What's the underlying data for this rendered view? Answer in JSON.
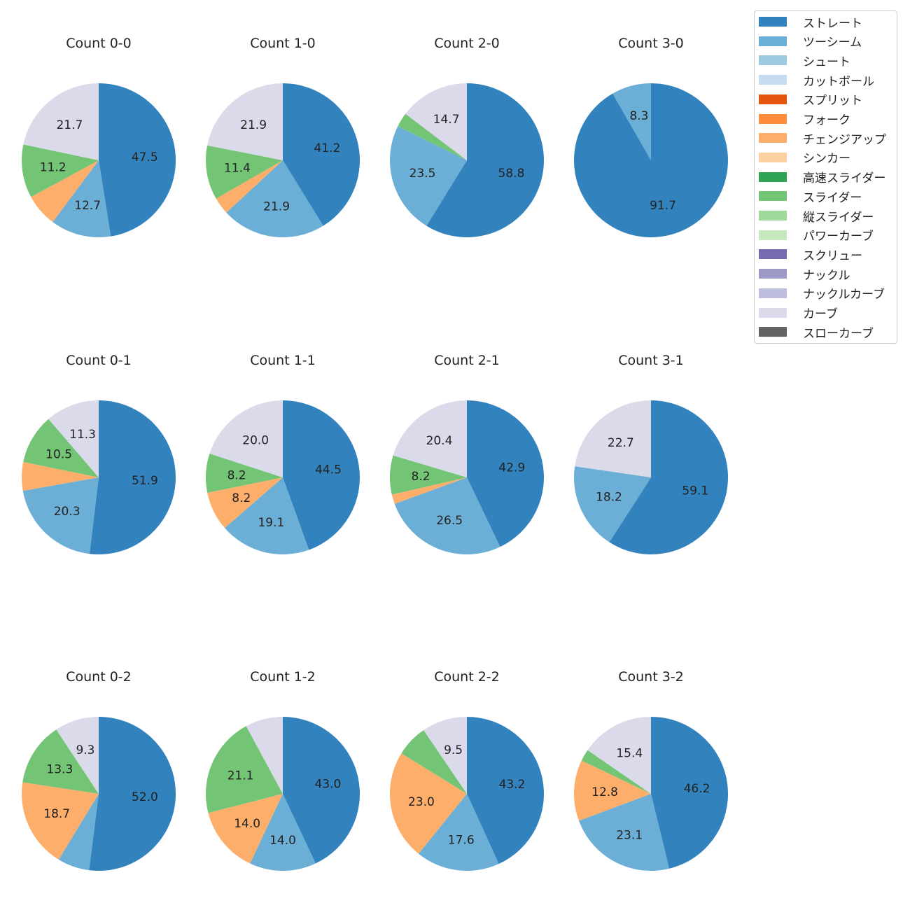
{
  "chart_data": {
    "type": "pie",
    "legend_position": "top-right",
    "pitch_types": [
      {
        "name": "ストレート",
        "color": "#3182bd"
      },
      {
        "name": "ツーシーム",
        "color": "#6baed6"
      },
      {
        "name": "シュート",
        "color": "#9ecae1"
      },
      {
        "name": "カットボール",
        "color": "#c6dbef"
      },
      {
        "name": "スプリット",
        "color": "#e6550d"
      },
      {
        "name": "フォーク",
        "color": "#fd8d3c"
      },
      {
        "name": "チェンジアップ",
        "color": "#fdae6b"
      },
      {
        "name": "シンカー",
        "color": "#fdd0a2"
      },
      {
        "name": "高速スライダー",
        "color": "#31a354"
      },
      {
        "name": "スライダー",
        "color": "#74c476"
      },
      {
        "name": "縦スライダー",
        "color": "#a1d99b"
      },
      {
        "name": "パワーカーブ",
        "color": "#c7e9c0"
      },
      {
        "name": "スクリュー",
        "color": "#756bb1"
      },
      {
        "name": "ナックル",
        "color": "#9e9ac8"
      },
      {
        "name": "ナックルカーブ",
        "color": "#bcbddc"
      },
      {
        "name": "カーブ",
        "color": "#dadaeb"
      },
      {
        "name": "スローカーブ",
        "color": "#636363"
      }
    ],
    "charts": [
      {
        "title": "Count 0-0",
        "slices": [
          {
            "pitch": "ストレート",
            "value": 47.5,
            "label": "47.5"
          },
          {
            "pitch": "ツーシーム",
            "value": 12.7,
            "label": "12.7"
          },
          {
            "pitch": "チェンジアップ",
            "value": 6.9,
            "label": ""
          },
          {
            "pitch": "スライダー",
            "value": 11.2,
            "label": "11.2"
          },
          {
            "pitch": "カーブ",
            "value": 21.7,
            "label": "21.7"
          }
        ]
      },
      {
        "title": "Count 1-0",
        "slices": [
          {
            "pitch": "ストレート",
            "value": 41.2,
            "label": "41.2"
          },
          {
            "pitch": "ツーシーム",
            "value": 21.9,
            "label": "21.9"
          },
          {
            "pitch": "チェンジアップ",
            "value": 3.6,
            "label": ""
          },
          {
            "pitch": "スライダー",
            "value": 11.4,
            "label": "11.4"
          },
          {
            "pitch": "カーブ",
            "value": 21.9,
            "label": "21.9"
          }
        ]
      },
      {
        "title": "Count 2-0",
        "slices": [
          {
            "pitch": "ストレート",
            "value": 58.8,
            "label": "58.8"
          },
          {
            "pitch": "ツーシーム",
            "value": 23.5,
            "label": "23.5"
          },
          {
            "pitch": "スライダー",
            "value": 3.0,
            "label": ""
          },
          {
            "pitch": "カーブ",
            "value": 14.7,
            "label": "14.7"
          }
        ]
      },
      {
        "title": "Count 3-0",
        "slices": [
          {
            "pitch": "ストレート",
            "value": 91.7,
            "label": "91.7"
          },
          {
            "pitch": "ツーシーム",
            "value": 8.3,
            "label": "8.3"
          }
        ]
      },
      {
        "title": "Count 0-1",
        "slices": [
          {
            "pitch": "ストレート",
            "value": 51.9,
            "label": "51.9"
          },
          {
            "pitch": "ツーシーム",
            "value": 20.3,
            "label": "20.3"
          },
          {
            "pitch": "チェンジアップ",
            "value": 6.0,
            "label": ""
          },
          {
            "pitch": "スライダー",
            "value": 10.5,
            "label": "10.5"
          },
          {
            "pitch": "カーブ",
            "value": 11.3,
            "label": "11.3"
          }
        ]
      },
      {
        "title": "Count 1-1",
        "slices": [
          {
            "pitch": "ストレート",
            "value": 44.5,
            "label": "44.5"
          },
          {
            "pitch": "ツーシーム",
            "value": 19.1,
            "label": "19.1"
          },
          {
            "pitch": "チェンジアップ",
            "value": 8.2,
            "label": "8.2"
          },
          {
            "pitch": "スライダー",
            "value": 8.2,
            "label": "8.2"
          },
          {
            "pitch": "カーブ",
            "value": 20.0,
            "label": "20.0"
          }
        ]
      },
      {
        "title": "Count 2-1",
        "slices": [
          {
            "pitch": "ストレート",
            "value": 42.9,
            "label": "42.9"
          },
          {
            "pitch": "ツーシーム",
            "value": 26.5,
            "label": "26.5"
          },
          {
            "pitch": "チェンジアップ",
            "value": 2.0,
            "label": ""
          },
          {
            "pitch": "スライダー",
            "value": 8.2,
            "label": "8.2"
          },
          {
            "pitch": "カーブ",
            "value": 20.4,
            "label": "20.4"
          }
        ]
      },
      {
        "title": "Count 3-1",
        "slices": [
          {
            "pitch": "ストレート",
            "value": 59.1,
            "label": "59.1"
          },
          {
            "pitch": "ツーシーム",
            "value": 18.2,
            "label": "18.2"
          },
          {
            "pitch": "カーブ",
            "value": 22.7,
            "label": "22.7"
          }
        ]
      },
      {
        "title": "Count 0-2",
        "slices": [
          {
            "pitch": "ストレート",
            "value": 52.0,
            "label": "52.0"
          },
          {
            "pitch": "ツーシーム",
            "value": 6.7,
            "label": ""
          },
          {
            "pitch": "チェンジアップ",
            "value": 18.7,
            "label": "18.7"
          },
          {
            "pitch": "スライダー",
            "value": 13.3,
            "label": "13.3"
          },
          {
            "pitch": "カーブ",
            "value": 9.3,
            "label": "9.3"
          }
        ]
      },
      {
        "title": "Count 1-2",
        "slices": [
          {
            "pitch": "ストレート",
            "value": 43.0,
            "label": "43.0"
          },
          {
            "pitch": "ツーシーム",
            "value": 14.0,
            "label": "14.0"
          },
          {
            "pitch": "チェンジアップ",
            "value": 14.0,
            "label": "14.0"
          },
          {
            "pitch": "スライダー",
            "value": 21.1,
            "label": "21.1"
          },
          {
            "pitch": "カーブ",
            "value": 7.9,
            "label": ""
          }
        ]
      },
      {
        "title": "Count 2-2",
        "slices": [
          {
            "pitch": "ストレート",
            "value": 43.2,
            "label": "43.2"
          },
          {
            "pitch": "ツーシーム",
            "value": 17.6,
            "label": "17.6"
          },
          {
            "pitch": "チェンジアップ",
            "value": 23.0,
            "label": "23.0"
          },
          {
            "pitch": "スライダー",
            "value": 6.7,
            "label": ""
          },
          {
            "pitch": "カーブ",
            "value": 9.5,
            "label": "9.5"
          }
        ]
      },
      {
        "title": "Count 3-2",
        "slices": [
          {
            "pitch": "ストレート",
            "value": 46.2,
            "label": "46.2"
          },
          {
            "pitch": "ツーシーム",
            "value": 23.1,
            "label": "23.1"
          },
          {
            "pitch": "チェンジアップ",
            "value": 12.8,
            "label": "12.8"
          },
          {
            "pitch": "スライダー",
            "value": 2.5,
            "label": ""
          },
          {
            "pitch": "カーブ",
            "value": 15.4,
            "label": "15.4"
          }
        ]
      }
    ]
  }
}
